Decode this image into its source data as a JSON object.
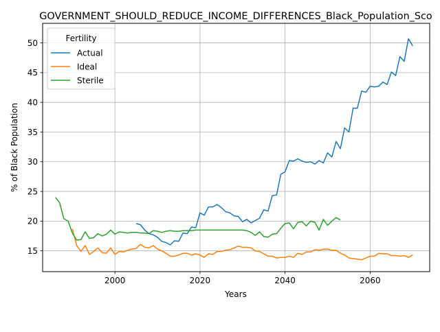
{
  "chart_data": {
    "type": "line",
    "title": "GOVERNMENT_SHOULD_REDUCE_INCOME_DIFFERENCES_Black_Population_Sco",
    "xlabel": "Years",
    "ylabel": "% of Black Population",
    "xlim": [
      1983,
      2074
    ],
    "ylim": [
      11.5,
      53.3
    ],
    "xticks": [
      2000,
      2020,
      2040,
      2060
    ],
    "yticks": [
      15,
      20,
      25,
      30,
      35,
      40,
      45,
      50
    ],
    "grid": true,
    "legend": {
      "title": "Fertility",
      "position": "top-left"
    },
    "series": [
      {
        "name": "Actual",
        "color": "#1f77b4",
        "x": [
          2005,
          2006,
          2007,
          2008,
          2009,
          2010,
          2011,
          2012,
          2013,
          2014,
          2015,
          2016,
          2017,
          2018,
          2019,
          2020,
          2021,
          2022,
          2023,
          2024,
          2025,
          2026,
          2027,
          2028,
          2029,
          2030,
          2031,
          2032,
          2033,
          2034,
          2035,
          2036,
          2037,
          2038,
          2039,
          2040,
          2041,
          2042,
          2043,
          2044,
          2045,
          2046,
          2047,
          2048,
          2049,
          2050,
          2051,
          2052,
          2053,
          2054,
          2055,
          2056,
          2057,
          2058,
          2059,
          2060,
          2061,
          2062,
          2063,
          2064,
          2065,
          2066,
          2067,
          2068,
          2069,
          2070
        ],
        "values": [
          19.6,
          19.4,
          18.5,
          17.9,
          17.7,
          17.3,
          16.6,
          16.4,
          16.0,
          16.7,
          16.6,
          18.0,
          17.9,
          19.0,
          18.9,
          21.4,
          21.0,
          22.4,
          22.4,
          22.8,
          22.3,
          21.6,
          21.4,
          20.9,
          20.8,
          19.9,
          20.3,
          19.7,
          20.1,
          20.5,
          21.9,
          21.7,
          24.3,
          24.4,
          27.9,
          28.3,
          30.2,
          30.1,
          30.5,
          30.1,
          29.9,
          30.0,
          29.6,
          30.2,
          29.8,
          31.5,
          30.8,
          33.4,
          32.2,
          35.7,
          35.0,
          39.0,
          39.0,
          41.9,
          41.7,
          42.7,
          42.6,
          42.7,
          43.4,
          43.0,
          45.1,
          44.5,
          47.7,
          46.9,
          50.7,
          49.5
        ]
      },
      {
        "name": "Ideal",
        "color": "#ff7f0e",
        "x": [
          1990,
          1991,
          1992,
          1993,
          1994,
          1995,
          1996,
          1997,
          1998,
          1999,
          2000,
          2001,
          2002,
          2003,
          2004,
          2005,
          2006,
          2007,
          2008,
          2009,
          2010,
          2011,
          2012,
          2013,
          2014,
          2015,
          2016,
          2017,
          2018,
          2019,
          2020,
          2021,
          2022,
          2023,
          2024,
          2025,
          2026,
          2027,
          2028,
          2029,
          2030,
          2031,
          2032,
          2033,
          2034,
          2035,
          2036,
          2037,
          2038,
          2039,
          2040,
          2041,
          2042,
          2043,
          2044,
          2045,
          2046,
          2047,
          2048,
          2049,
          2050,
          2051,
          2052,
          2053,
          2054,
          2055,
          2056,
          2057,
          2058,
          2059,
          2060,
          2061,
          2062,
          2063,
          2064,
          2065,
          2066,
          2067,
          2068,
          2069,
          2070
        ],
        "values": [
          18.7,
          15.9,
          14.9,
          15.9,
          14.4,
          14.9,
          15.5,
          14.7,
          14.6,
          15.5,
          14.4,
          14.9,
          14.8,
          15.1,
          15.3,
          15.4,
          16.1,
          15.6,
          15.5,
          15.9,
          15.3,
          15.0,
          14.6,
          14.1,
          14.1,
          14.3,
          14.6,
          14.6,
          14.3,
          14.5,
          14.3,
          13.9,
          14.5,
          14.4,
          14.9,
          14.9,
          15.1,
          15.2,
          15.5,
          15.8,
          15.6,
          15.6,
          15.5,
          15.0,
          14.9,
          14.5,
          14.1,
          14.1,
          13.8,
          13.9,
          13.9,
          14.1,
          13.9,
          14.6,
          14.4,
          14.8,
          14.8,
          15.2,
          15.1,
          15.3,
          15.3,
          15.1,
          15.1,
          14.6,
          14.3,
          13.8,
          13.7,
          13.6,
          13.5,
          13.8,
          14.1,
          14.1,
          14.6,
          14.5,
          14.5,
          14.2,
          14.2,
          14.1,
          14.2,
          13.9,
          14.3
        ]
      },
      {
        "name": "Sterile",
        "color": "#2ca02c",
        "x": [
          1986,
          1987,
          1988,
          1989,
          1990,
          1991,
          1992,
          1993,
          1994,
          1995,
          1996,
          1997,
          1998,
          1999,
          2000,
          2001,
          2002,
          2003,
          2004,
          2005,
          2006,
          2007,
          2008,
          2009,
          2010,
          2011,
          2012,
          2013,
          2014,
          2015,
          2016,
          2017,
          2018,
          2019,
          2020,
          2021,
          2022,
          2023,
          2024,
          2025,
          2026,
          2027,
          2028,
          2029,
          2030,
          2031,
          2032,
          2033,
          2034,
          2035,
          2036,
          2037,
          2038,
          2039,
          2040,
          2041,
          2042,
          2043,
          2044,
          2045,
          2046,
          2047,
          2048,
          2049,
          2050,
          2051,
          2052,
          2053
        ],
        "values": [
          24.0,
          23.1,
          20.4,
          20.0,
          18.0,
          16.8,
          16.9,
          18.2,
          17.1,
          17.2,
          17.9,
          17.5,
          17.8,
          18.5,
          17.8,
          18.2,
          18.1,
          18.0,
          18.1,
          18.1,
          18.0,
          18.0,
          17.9,
          18.4,
          18.3,
          18.1,
          18.3,
          18.4,
          18.3,
          18.3,
          18.4,
          18.4,
          18.4,
          18.5,
          18.5,
          18.5,
          18.5,
          18.5,
          18.5,
          18.5,
          18.5,
          18.5,
          18.5,
          18.5,
          18.5,
          18.4,
          18.1,
          17.6,
          18.2,
          17.4,
          17.3,
          17.8,
          17.9,
          18.8,
          19.6,
          19.7,
          18.7,
          19.8,
          19.9,
          19.2,
          20.0,
          19.8,
          18.5,
          20.3,
          19.3,
          20.0,
          20.6,
          20.2
        ]
      }
    ]
  }
}
